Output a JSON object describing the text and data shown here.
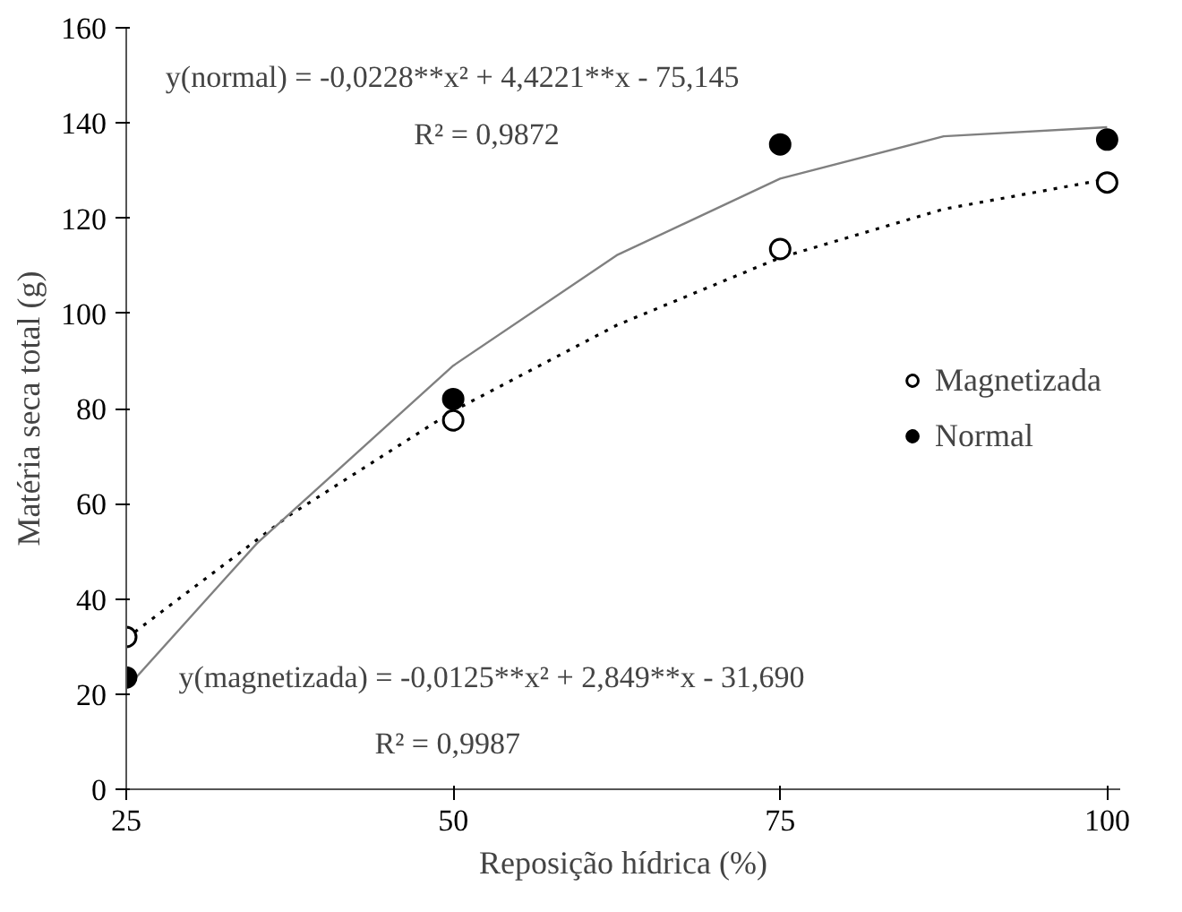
{
  "chart_data": {
    "type": "scatter",
    "xlabel": "Reposição hídrica (%)",
    "ylabel": "Matéria seca total (g)",
    "xlim": [
      25,
      101
    ],
    "xticks": [
      25,
      50,
      75,
      100
    ],
    "ylim": [
      0,
      160
    ],
    "yticks": [
      0,
      20,
      40,
      60,
      80,
      100,
      120,
      140,
      160
    ],
    "grid": false,
    "legend": "right",
    "series": [
      {
        "name": "Magnetizada",
        "marker": "circle",
        "color": "#ffffff",
        "x": [
          25,
          50,
          75,
          100
        ],
        "values": [
          32,
          77.5,
          113.5,
          127.5
        ]
      },
      {
        "name": "Normal",
        "marker": "circle",
        "color": "#000000",
        "x": [
          25,
          50,
          75,
          100
        ],
        "values": [
          23.5,
          82,
          135.5,
          136.5
        ]
      },
      {
        "type": "line",
        "marker": "none",
        "color": "#000000",
        "line_style": "dotted",
        "x": [
          25,
          37.5,
          50,
          62.5,
          75,
          87.5,
          100
        ],
        "values": [
          31.7,
          57.6,
          79.5,
          97.5,
          111.7,
          121.9,
          128.2
        ]
      },
      {
        "type": "line",
        "marker": "none",
        "color": "#808080",
        "line_style": "solid",
        "x": [
          25,
          35,
          50,
          62.5,
          75,
          87.5,
          100
        ],
        "values": [
          21.2,
          51.7,
          89,
          112.2,
          128.3,
          137.2,
          139.1
        ]
      }
    ],
    "annotations": [
      "y(normal) = -0,0228**x² + 4,4221**x - 75,145",
      "R² = 0,9872",
      "y(magnetizada) = -0,0125**x² + 2,849**x - 31,690",
      "R² = 0,9987"
    ]
  }
}
